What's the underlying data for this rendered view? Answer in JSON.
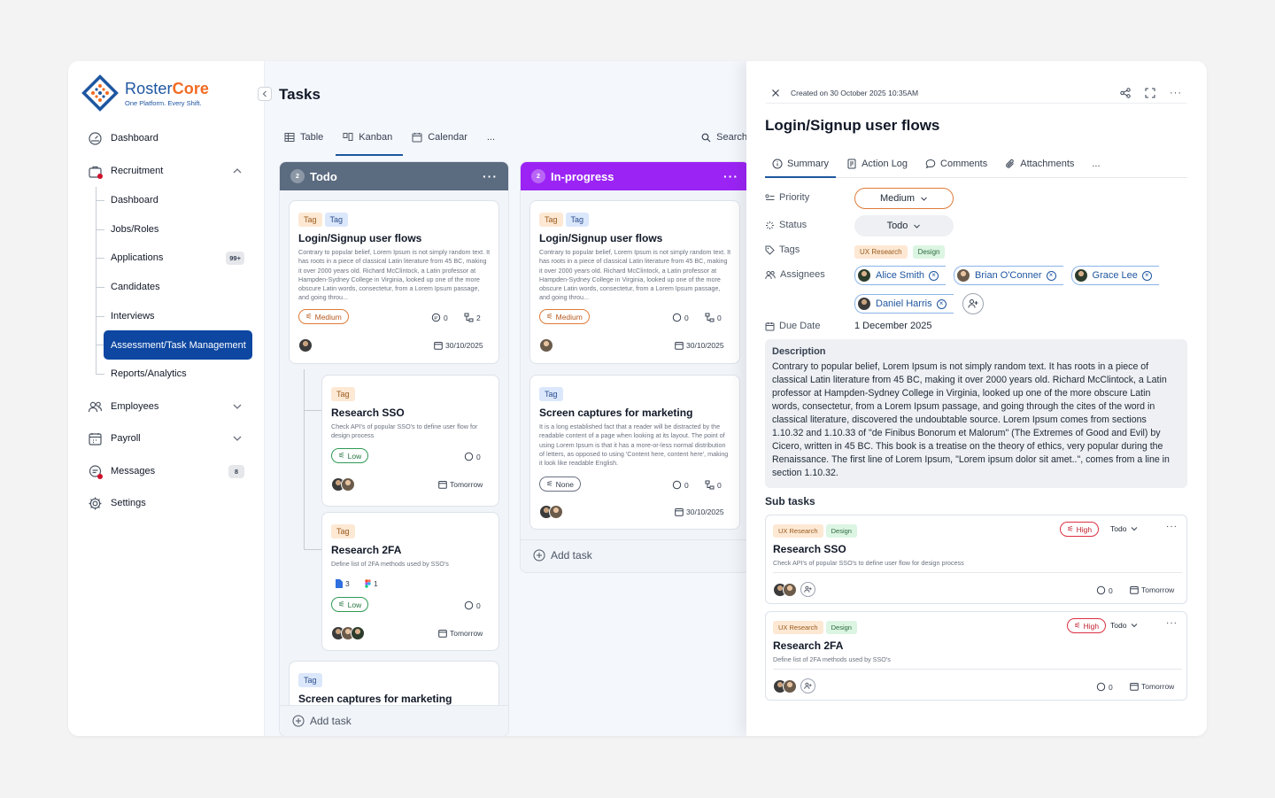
{
  "brand": {
    "name_a": "Roster",
    "name_b": "Core",
    "tagline": "One Platform. Every Shift."
  },
  "nav": {
    "dashboard": "Dashboard",
    "recruitment": "Recruitment",
    "sub": [
      "Dashboard",
      "Jobs/Roles",
      "Applications",
      "Candidates",
      "Interviews",
      "Assessment/Task Management",
      "Reports/Analytics"
    ],
    "applications_badge": "99+",
    "employees": "Employees",
    "payroll": "Payroll",
    "messages": "Messages",
    "messages_badge": "8",
    "settings": "Settings"
  },
  "page": {
    "title": "Tasks",
    "views": [
      "Table",
      "Kanban",
      "Calendar",
      "..."
    ],
    "search": "Search"
  },
  "columns": [
    {
      "name": "Todo",
      "count": "2",
      "color": "#5b6b80"
    },
    {
      "name": "In-progress",
      "count": "2",
      "color": "#9b24f4"
    }
  ],
  "desc_long": "Contrary to popular belief, Lorem Ipsum is not simply random text. It has roots in a piece of classical Latin literature from 45 BC, making it over 2000 years old. Richard McClintock, a Latin professor at Hampden-Sydney College in Virginia, looked up one of the more obscure Latin words, consectetur, from a Lorem Ipsum passage, and going throu...",
  "todo": {
    "c1": {
      "tags": [
        "Tag",
        "Tag"
      ],
      "title": "Login/Signup user flows",
      "priority": "Medium",
      "comments": "0",
      "subtasks": "2",
      "date": "30/10/2025"
    },
    "c2": {
      "tag": "Tag",
      "title": "Research SSO",
      "desc": "Check API's of popular SSO's to define user flow for design process",
      "priority": "Low",
      "comments": "0",
      "date": "Tomorrow"
    },
    "c3": {
      "tag": "Tag",
      "title": "Research 2FA",
      "desc": "Define list of 2FA methods used by SSO's",
      "docs": "3",
      "figma": "1",
      "priority": "Low",
      "comments": "0",
      "date": "Tomorrow"
    },
    "c4": {
      "tag": "Tag",
      "title": "Screen captures for marketing"
    },
    "add": "Add task"
  },
  "inprog": {
    "c1": {
      "tags": [
        "Tag",
        "Tag"
      ],
      "title": "Login/Signup user flows",
      "priority": "Medium",
      "comments": "0",
      "subtasks": "0",
      "date": "30/10/2025"
    },
    "c2": {
      "tag": "Tag",
      "title": "Screen captures for marketing",
      "desc": "It is a long established fact that a reader will be distracted by the readable content of a page when looking at its layout. The point of using Lorem Ipsum is that it has a more-or-less normal distribution of letters, as opposed to using 'Content here, content here', making it look like readable English.",
      "priority": "None",
      "comments": "0",
      "subtasks": "0",
      "date": "30/10/2025"
    },
    "add": "Add task"
  },
  "detail": {
    "created": "Created on 30 October 2025  10:35AM",
    "title": "Login/Signup user flows",
    "tabs": [
      "Summary",
      "Action Log",
      "Comments",
      "Attachments",
      "..."
    ],
    "labels": {
      "priority": "Priority",
      "status": "Status",
      "tags": "Tags",
      "assignees": "Assignees",
      "due": "Due Date"
    },
    "priority": "Medium",
    "status": "Todo",
    "tags": [
      "UX Research",
      "Design"
    ],
    "assignees": [
      "Alice Smith",
      "Brian O'Conner",
      "Grace Lee",
      "Daniel Harris"
    ],
    "due": "1 December 2025",
    "desc_h": "Description",
    "desc": "Contrary to popular belief, Lorem Ipsum is not simply random text. It has roots in a piece of classical Latin literature from 45 BC, making it over 2000 years old. Richard McClintock, a Latin professor at Hampden-Sydney College in Virginia, looked up one of the more obscure Latin words, consectetur, from a Lorem Ipsum passage, and going through the cites of the word in classical literature, discovered the undoubtable source. Lorem Ipsum comes from sections 1.10.32 and 1.10.33 of \"de Finibus Bonorum et Malorum\" (The Extremes of Good and Evil) by Cicero, written in 45 BC. This book is a treatise on the theory of ethics, very popular during the Renaissance. The first line of Lorem Ipsum, \"Lorem ipsum dolor sit amet..\", comes from a line in section 1.10.32.",
    "subtasks_h": "Sub tasks",
    "subtasks": [
      {
        "tags": [
          "UX Research",
          "Design"
        ],
        "priority": "High",
        "status": "Todo",
        "title": "Research SSO",
        "desc": "Check API's of popular SSO's to define user flow for design process",
        "comments": "0",
        "date": "Tomorrow"
      },
      {
        "tags": [
          "UX Research",
          "Design"
        ],
        "priority": "High",
        "status": "Todo",
        "title": "Research 2FA",
        "desc": "Define list of 2FA methods used by SSO's",
        "comments": "0",
        "date": "Tomorrow"
      }
    ]
  }
}
